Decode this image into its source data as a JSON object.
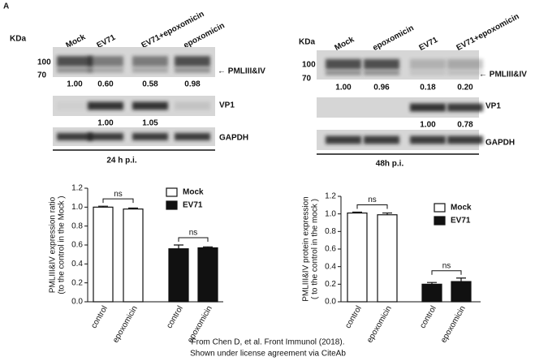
{
  "panel_label": "A",
  "blots": [
    {
      "kda": "KDa",
      "markers": [
        100,
        70
      ],
      "lanes": [
        "Mock",
        "EV71",
        "EV71+epoxomicin",
        "epoxomicin"
      ],
      "rows": [
        {
          "label": "← PMLIII&IV",
          "values": [
            "1.00",
            "0.60",
            "0.58",
            "0.98"
          ]
        },
        {
          "label": "VP1",
          "values": [
            null,
            "1.00",
            "1.05",
            null
          ]
        },
        {
          "label": "GAPDH"
        }
      ],
      "timepoint": "24 h p.i."
    },
    {
      "kda": "KDa",
      "markers": [
        100,
        70
      ],
      "lanes": [
        "Mock",
        "epoxomicin",
        "EV71",
        "EV71+epoxomicin"
      ],
      "rows": [
        {
          "label": "← PMLIII&IV",
          "values": [
            "1.00",
            "0.96",
            "0.18",
            "0.20"
          ]
        },
        {
          "label": "VP1",
          "values": [
            null,
            null,
            "1.00",
            "0.78"
          ]
        },
        {
          "label": "GAPDH"
        }
      ],
      "timepoint": "48h p.i."
    }
  ],
  "chart_data": [
    {
      "type": "bar",
      "y_label": [
        "PMLIII&IV expression ratio",
        "(to the control in the Mock )"
      ],
      "categories": [
        "control",
        "epoxomicin",
        "control",
        "epoxomicin"
      ],
      "series": [
        {
          "name": "Mock",
          "color": "#ffffff",
          "values": [
            1.0,
            0.98,
            null,
            null
          ],
          "errors": [
            0.01,
            0.01,
            null,
            null
          ]
        },
        {
          "name": "EV71",
          "color": "#111111",
          "values": [
            null,
            null,
            0.56,
            0.57
          ],
          "errors": [
            null,
            null,
            0.04,
            0.01
          ]
        }
      ],
      "annotations": [
        "ns",
        "ns"
      ],
      "ylim": [
        0,
        1.2
      ],
      "yticks": [
        {
          "value": 0,
          "label": "0.0"
        },
        0.2,
        0.4,
        0.6,
        0.8,
        {
          "value": 1,
          "label": "1.0"
        },
        1.2
      ]
    },
    {
      "type": "bar",
      "y_label": [
        "PMLIII&IV protein expression",
        "( to the control in the mock )"
      ],
      "categories": [
        "control",
        "epoxomicin",
        "control",
        "epoxomicin"
      ],
      "series": [
        {
          "name": "Mock",
          "color": "#ffffff",
          "values": [
            1.01,
            0.99,
            null,
            null
          ],
          "errors": [
            0.01,
            0.02,
            null,
            null
          ]
        },
        {
          "name": "EV71",
          "color": "#111111",
          "values": [
            null,
            null,
            0.2,
            0.23
          ],
          "errors": [
            null,
            null,
            0.02,
            0.04
          ]
        }
      ],
      "annotations": [
        "ns",
        "ns"
      ],
      "ylim": [
        0,
        1.2
      ],
      "yticks": [
        {
          "value": 0,
          "label": "0.0"
        },
        0.2,
        0.4,
        0.6,
        0.8,
        {
          "value": 1,
          "label": "1.0"
        },
        1.2
      ]
    }
  ],
  "footer": [
    "From Chen D, et al. Front Immunol (2018).",
    "Shown under license agreement via CiteAb"
  ]
}
